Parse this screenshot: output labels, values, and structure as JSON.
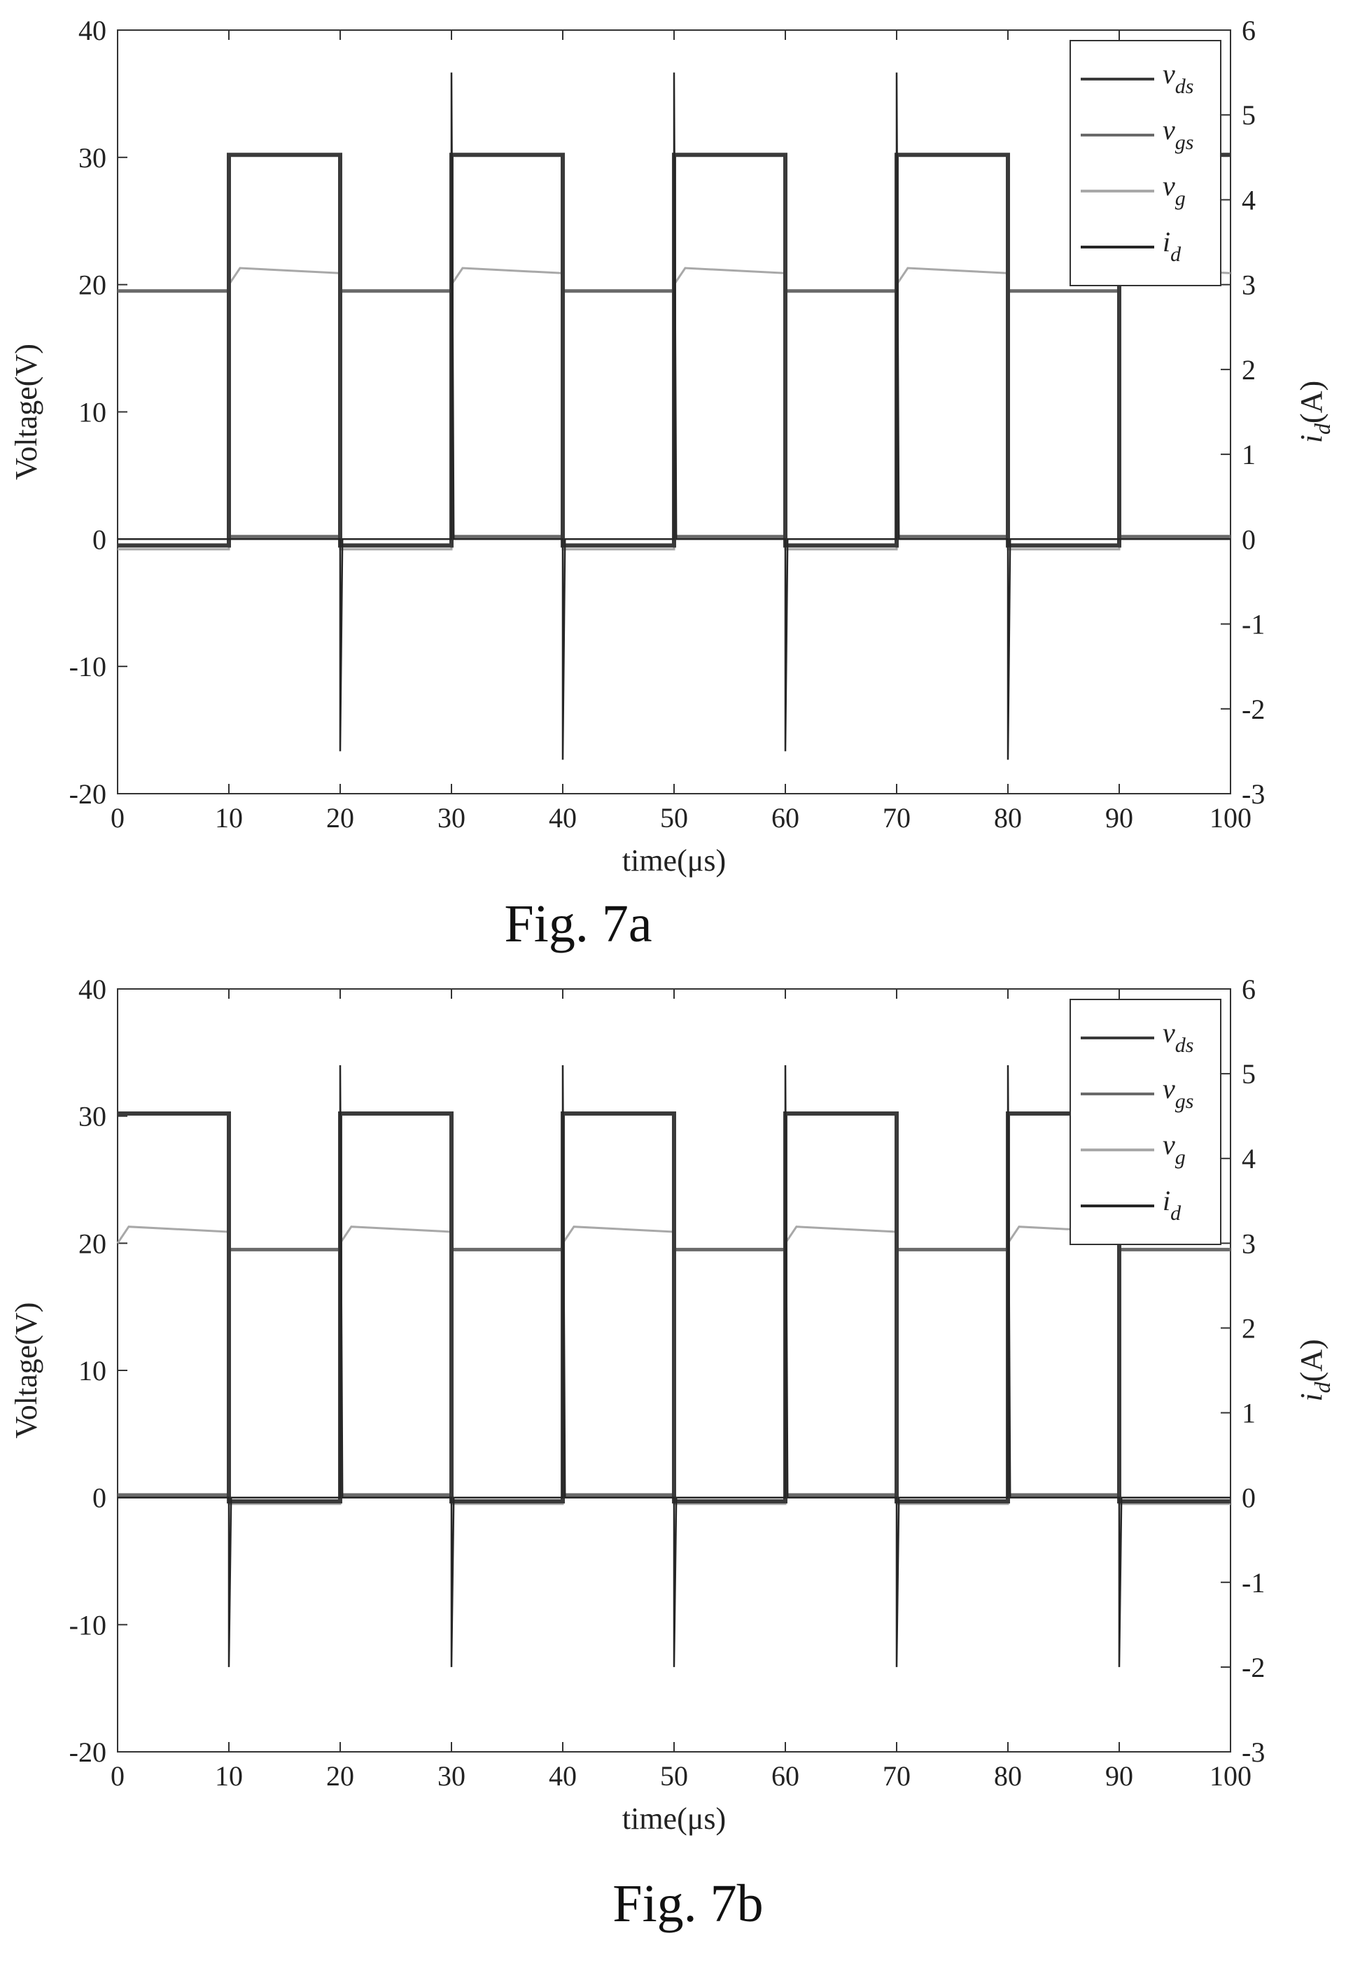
{
  "figures": [
    {
      "caption": "Fig. 7a"
    },
    {
      "caption": "Fig. 7b"
    }
  ],
  "colors": {
    "v_ds": "#3a3a3a",
    "v_gs": "#6a6a6a",
    "v_g": "#a8a8a8",
    "i_d": "#262626",
    "axis": "#333333"
  },
  "chart_data": [
    {
      "type": "line",
      "xlabel": "time(μs)",
      "ylabel": "Voltage(V)",
      "y2label": "id(A)",
      "xlim": [
        0,
        100
      ],
      "ylim": [
        -20,
        40
      ],
      "y2lim": [
        -3,
        6
      ],
      "xticks": [
        0,
        10,
        20,
        30,
        40,
        50,
        60,
        70,
        80,
        90,
        100
      ],
      "yticks": [
        -20,
        -10,
        0,
        10,
        20,
        30,
        40
      ],
      "y2ticks": [
        -3,
        -2,
        -1,
        0,
        1,
        2,
        3,
        4,
        5,
        6
      ],
      "legend": {
        "position": "top-right",
        "entries": [
          "v_ds",
          "v_gs",
          "v_g",
          "i_d"
        ]
      },
      "series": [
        {
          "name": "v_ds",
          "axis": "left",
          "x": [
            0,
            10,
            10,
            20,
            20,
            30,
            30,
            40,
            40,
            50,
            50,
            60,
            60,
            70,
            70,
            80,
            80,
            90,
            90,
            100
          ],
          "y": [
            -0.5,
            -0.5,
            30.2,
            30.2,
            -0.5,
            -0.5,
            30.2,
            30.2,
            -0.5,
            -0.5,
            30.2,
            30.2,
            -0.5,
            -0.5,
            30.2,
            30.2,
            -0.5,
            -0.5,
            30.2,
            30.2
          ]
        },
        {
          "name": "v_gs",
          "axis": "left",
          "x": [
            0,
            10,
            10,
            20,
            20,
            30,
            30,
            40,
            40,
            50,
            50,
            60,
            60,
            70,
            70,
            80,
            80,
            90,
            90,
            100
          ],
          "y": [
            19.5,
            19.5,
            0.2,
            0.2,
            19.5,
            19.5,
            0.2,
            0.2,
            19.5,
            19.5,
            0.2,
            0.2,
            19.5,
            19.5,
            0.2,
            0.2,
            19.5,
            19.5,
            0.2,
            0.2
          ]
        },
        {
          "name": "v_g",
          "axis": "left",
          "x": [
            0,
            10,
            10,
            11,
            20,
            20,
            30,
            30,
            31,
            40,
            40,
            50,
            50,
            51,
            60,
            60,
            70,
            70,
            71,
            80,
            80,
            90,
            90,
            91,
            100
          ],
          "y": [
            -0.8,
            -0.8,
            20.0,
            21.3,
            20.9,
            -0.8,
            -0.8,
            20.0,
            21.3,
            20.9,
            -0.8,
            -0.8,
            20.0,
            21.3,
            20.9,
            -0.8,
            -0.8,
            20.0,
            21.3,
            20.9,
            -0.8,
            -0.8,
            20.0,
            21.3,
            20.9
          ]
        },
        {
          "name": "i_d",
          "axis": "right",
          "x": [
            0,
            10,
            10,
            10.2,
            20,
            20,
            20.2,
            30,
            30,
            30.2,
            40,
            40,
            40.2,
            50,
            50,
            50.2,
            60,
            60,
            60.2,
            70,
            70,
            70.2,
            80,
            80,
            80.2,
            90,
            90,
            100
          ],
          "y": [
            0,
            0,
            0,
            0,
            0,
            -2.5,
            0,
            0,
            5.5,
            0,
            0,
            -2.6,
            0,
            0,
            5.5,
            0,
            0,
            -2.5,
            0,
            0,
            5.5,
            0,
            0,
            -2.6,
            0,
            0,
            0,
            0
          ]
        }
      ]
    },
    {
      "type": "line",
      "xlabel": "time(μs)",
      "ylabel": "Voltage(V)",
      "y2label": "id(A)",
      "xlim": [
        0,
        100
      ],
      "ylim": [
        -20,
        40
      ],
      "y2lim": [
        -3,
        6
      ],
      "xticks": [
        0,
        10,
        20,
        30,
        40,
        50,
        60,
        70,
        80,
        90,
        100
      ],
      "yticks": [
        -20,
        -10,
        0,
        10,
        20,
        30,
        40
      ],
      "y2ticks": [
        -3,
        -2,
        -1,
        0,
        1,
        2,
        3,
        4,
        5,
        6
      ],
      "legend": {
        "position": "top-right",
        "entries": [
          "v_ds",
          "v_gs",
          "v_g",
          "i_d"
        ]
      },
      "series": [
        {
          "name": "v_ds",
          "axis": "left",
          "x": [
            0,
            10,
            10,
            20,
            20,
            30,
            30,
            40,
            40,
            50,
            50,
            60,
            60,
            70,
            70,
            80,
            80,
            90,
            90,
            100
          ],
          "y": [
            30.2,
            30.2,
            -0.3,
            -0.3,
            30.2,
            30.2,
            -0.3,
            -0.3,
            30.2,
            30.2,
            -0.3,
            -0.3,
            30.2,
            30.2,
            -0.3,
            -0.3,
            30.2,
            30.2,
            -0.3,
            -0.3
          ]
        },
        {
          "name": "v_gs",
          "axis": "left",
          "x": [
            0,
            10,
            10,
            20,
            20,
            30,
            30,
            40,
            40,
            50,
            50,
            60,
            60,
            70,
            70,
            80,
            80,
            90,
            90,
            100
          ],
          "y": [
            0.2,
            0.2,
            19.5,
            19.5,
            0.2,
            0.2,
            19.5,
            19.5,
            0.2,
            0.2,
            19.5,
            19.5,
            0.2,
            0.2,
            19.5,
            19.5,
            0.2,
            0.2,
            19.5,
            19.5
          ]
        },
        {
          "name": "v_g",
          "axis": "left",
          "x": [
            0,
            1,
            10,
            10,
            20,
            20,
            21,
            30,
            30,
            40,
            40,
            41,
            50,
            50,
            60,
            60,
            61,
            70,
            70,
            80,
            80,
            81,
            90,
            90,
            100
          ],
          "y": [
            20.0,
            21.3,
            20.9,
            -0.5,
            -0.5,
            20.0,
            21.3,
            20.9,
            -0.5,
            -0.5,
            20.0,
            21.3,
            20.9,
            -0.5,
            -0.5,
            20.0,
            21.3,
            20.9,
            -0.5,
            -0.5,
            20.0,
            21.3,
            20.9,
            -0.5,
            -0.5
          ]
        },
        {
          "name": "i_d",
          "axis": "right",
          "x": [
            0,
            10,
            10,
            10.2,
            20,
            20,
            20.2,
            30,
            30,
            30.2,
            40,
            40,
            40.2,
            50,
            50,
            50.2,
            60,
            60,
            60.2,
            70,
            70,
            70.2,
            80,
            80,
            80.2,
            90,
            90,
            90.2,
            100
          ],
          "y": [
            0,
            0,
            -2.0,
            0,
            0,
            5.1,
            0,
            0,
            -2.0,
            0,
            0,
            5.1,
            0,
            0,
            -2.0,
            0,
            0,
            5.1,
            0,
            0,
            -2.0,
            0,
            0,
            5.1,
            0,
            0,
            -2.0,
            0,
            0
          ]
        }
      ]
    }
  ]
}
